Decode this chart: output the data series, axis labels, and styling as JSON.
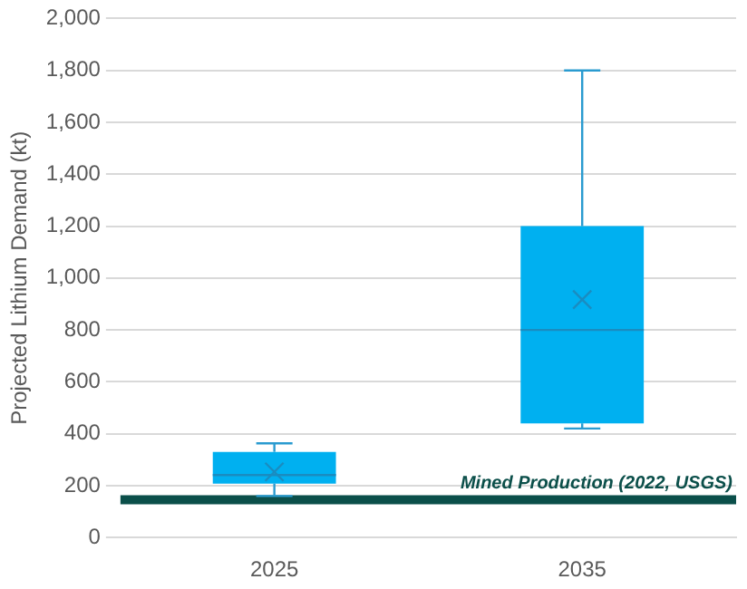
{
  "chart_data": {
    "type": "box",
    "ylabel": "Projected Lithium Demand (kt)",
    "categories": [
      "2025",
      "2035"
    ],
    "boxes": [
      {
        "low": 160,
        "q1": 208,
        "median": 241,
        "q3": 330,
        "high": 363,
        "mean": 253
      },
      {
        "low": 420,
        "q1": 440,
        "median": 800,
        "q3": 1200,
        "high": 1800,
        "mean": 917
      }
    ],
    "color": "#00b0f0",
    "ylim": [
      0,
      2000
    ],
    "yticks": [
      {
        "value": 0,
        "label": "0"
      },
      {
        "value": 200,
        "label": "200"
      },
      {
        "value": 400,
        "label": "400"
      },
      {
        "value": 600,
        "label": "600"
      },
      {
        "value": 800,
        "label": "800"
      },
      {
        "value": 1000,
        "label": "1,000"
      },
      {
        "value": 1200,
        "label": "1,200"
      },
      {
        "value": 1400,
        "label": "1,400"
      },
      {
        "value": 1600,
        "label": "1,600"
      },
      {
        "value": 1800,
        "label": "1,800"
      },
      {
        "value": 2000,
        "label": "2,000"
      }
    ],
    "grid": "y",
    "legend": false,
    "ref_lines": [
      {
        "axis": "y",
        "value": 146,
        "label": "Mined Production (2022, USGS)",
        "color": "#0b4f4a"
      }
    ]
  }
}
